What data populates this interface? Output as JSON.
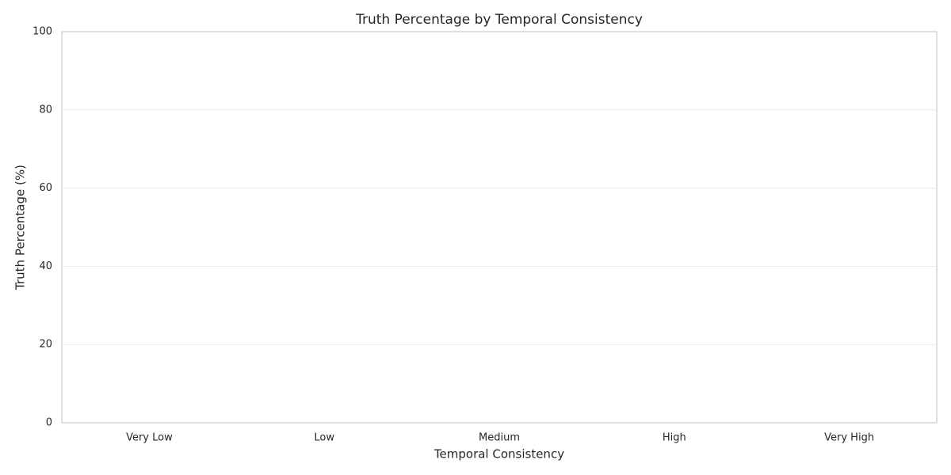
{
  "chart_data": {
    "type": "bar",
    "title": "Truth Percentage by Temporal Consistency",
    "xlabel": "Temporal Consistency",
    "ylabel": "Truth Percentage (%)",
    "categories": [
      "Very Low",
      "Low",
      "Medium",
      "High",
      "Very High"
    ],
    "ylim": [
      0,
      100
    ],
    "yticks": [
      0,
      20,
      40,
      60,
      80,
      100
    ],
    "grid": true
  }
}
